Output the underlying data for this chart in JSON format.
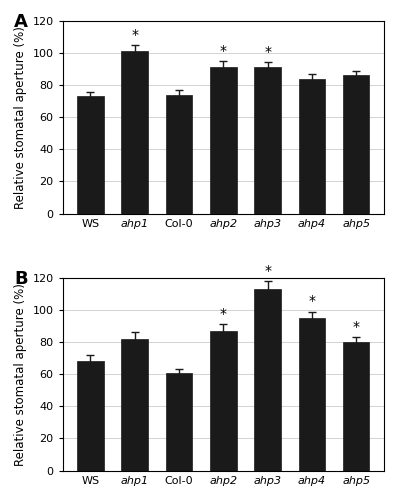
{
  "panel_A": {
    "label": "A",
    "categories": [
      "WS",
      "ahp1",
      "Col-0",
      "ahp2",
      "ahp3",
      "ahp4",
      "ahp5"
    ],
    "values": [
      73,
      101,
      74,
      91,
      91,
      84,
      86
    ],
    "errors": [
      3,
      4,
      3,
      4,
      3.5,
      3,
      3
    ],
    "significant": [
      false,
      true,
      false,
      true,
      true,
      false,
      false
    ],
    "ylabel": "Relative stomatal aperture (%)",
    "ylim": [
      0,
      120
    ],
    "yticks": [
      0,
      20,
      40,
      60,
      80,
      100,
      120
    ]
  },
  "panel_B": {
    "label": "B",
    "categories": [
      "WS",
      "ahp1",
      "Col-0",
      "ahp2",
      "ahp3",
      "ahp4",
      "ahp5"
    ],
    "values": [
      68,
      82,
      61,
      87,
      113,
      95,
      80
    ],
    "errors": [
      4,
      4,
      2.5,
      4,
      5,
      4,
      3
    ],
    "significant": [
      false,
      false,
      false,
      true,
      true,
      true,
      true
    ],
    "ylabel": "Relative stomatal aperture (%)",
    "ylim": [
      0,
      120
    ],
    "yticks": [
      0,
      20,
      40,
      60,
      80,
      100,
      120
    ]
  },
  "bar_color": "#1a1a1a",
  "bar_width": 0.6,
  "error_color": "#1a1a1a",
  "star_fontsize": 10,
  "tick_fontsize": 8,
  "ylabel_fontsize": 8.5,
  "panel_label_fontsize": 13,
  "cap_size": 3
}
